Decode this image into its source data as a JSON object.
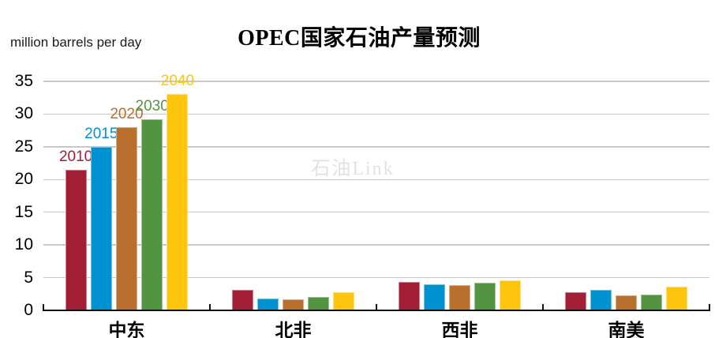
{
  "title": "OPEC国家石油产量预测",
  "y_axis_unit_label": "million barrels per day",
  "watermark": "石油Link",
  "chart_data": {
    "type": "bar",
    "title": "OPEC国家石油产量预测",
    "xlabel": "",
    "ylabel": "million barrels per day",
    "categories": [
      "中东",
      "北非",
      "西非",
      "南美"
    ],
    "series": [
      {
        "name": "2010",
        "color": "#a21e34",
        "values": [
          21.5,
          3.1,
          4.3,
          2.8
        ]
      },
      {
        "name": "2015",
        "color": "#0092d0",
        "values": [
          25.0,
          1.8,
          4.0,
          3.1
        ]
      },
      {
        "name": "2020",
        "color": "#b96f2d",
        "values": [
          28.0,
          1.7,
          3.9,
          2.3
        ]
      },
      {
        "name": "2030",
        "color": "#539443",
        "values": [
          29.2,
          2.1,
          4.2,
          2.4
        ]
      },
      {
        "name": "2040",
        "color": "#fdc50d",
        "values": [
          33.1,
          2.8,
          4.6,
          3.6
        ]
      }
    ],
    "ylim": [
      0,
      35
    ],
    "yticks": [
      0,
      5,
      10,
      15,
      20,
      25,
      30,
      35
    ],
    "grid": true,
    "legend_position": "series labels above first category group, colored per series",
    "gridline_color": "#c8c8c8",
    "axis_color": "#111111",
    "background_color": "#ffffff",
    "watermark_color": "#e2e2e2"
  }
}
